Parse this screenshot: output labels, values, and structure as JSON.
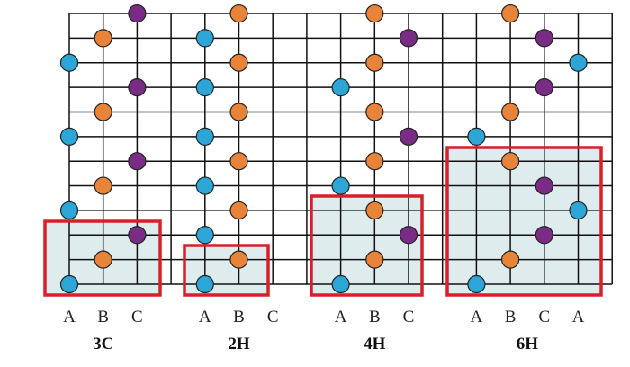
{
  "panels": [
    {
      "name": "3C",
      "columns": [
        "A",
        "B",
        "C"
      ]
    },
    {
      "name": "2H",
      "columns": [
        "A",
        "B",
        "C"
      ]
    },
    {
      "name": "4H",
      "columns": [
        "A",
        "B",
        "C"
      ]
    },
    {
      "name": "6H",
      "columns": [
        "A",
        "B",
        "C",
        "A"
      ]
    }
  ]
}
